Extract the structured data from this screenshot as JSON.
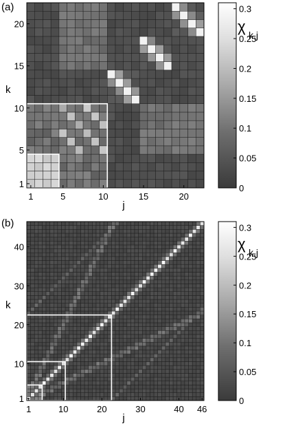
{
  "chart_data": [
    {
      "type": "heatmap",
      "panel_label": "(a)",
      "n": 22,
      "xlabel": "j",
      "ylabel": "k",
      "x_ticks": [
        1,
        5,
        10,
        15,
        20
      ],
      "y_ticks": [
        1,
        5,
        10,
        15,
        20
      ],
      "colorbar": {
        "label_main": "χ",
        "label_sub": "k,j",
        "range": [
          0,
          0.31
        ],
        "ticks": [
          0,
          0.05,
          0.1,
          0.15,
          0.2,
          0.25,
          0.3
        ],
        "tick_labels": [
          "0",
          "0.05",
          "0.1",
          "0.15",
          "0.2",
          "0.25",
          "0.3"
        ]
      },
      "highlight_blocks": [
        4,
        10
      ],
      "description": "22x22 matrix of chi_{k,j}; bright blocks along the diagonal groups, white outlined boxes for k,j <= 4 and k,j <= 10"
    },
    {
      "type": "heatmap",
      "panel_label": "(b)",
      "n": 46,
      "xlabel": "j",
      "ylabel": "k",
      "x_ticks": [
        1,
        10,
        20,
        30,
        40,
        46
      ],
      "y_ticks": [
        1,
        10,
        20,
        30,
        40
      ],
      "colorbar": {
        "label_main": "χ",
        "label_sub": "k,j",
        "range": [
          0,
          0.31
        ],
        "ticks": [
          0,
          0.05,
          0.1,
          0.15,
          0.2,
          0.25,
          0.3
        ],
        "tick_labels": [
          "0",
          "0.05",
          "0.1",
          "0.15",
          "0.2",
          "0.25",
          "0.3"
        ]
      },
      "highlight_blocks": [
        4,
        10,
        22
      ],
      "description": "46x46 matrix of chi_{k,j}; bright diagonal, faint parallel bands, white outlined boxes for k,j <= 4, 10 and 22"
    }
  ],
  "colors": {
    "low": "#3a3a3a",
    "high": "#ffffff",
    "grid_line": "#1e1e1e",
    "highlight": "#ffffff"
  }
}
